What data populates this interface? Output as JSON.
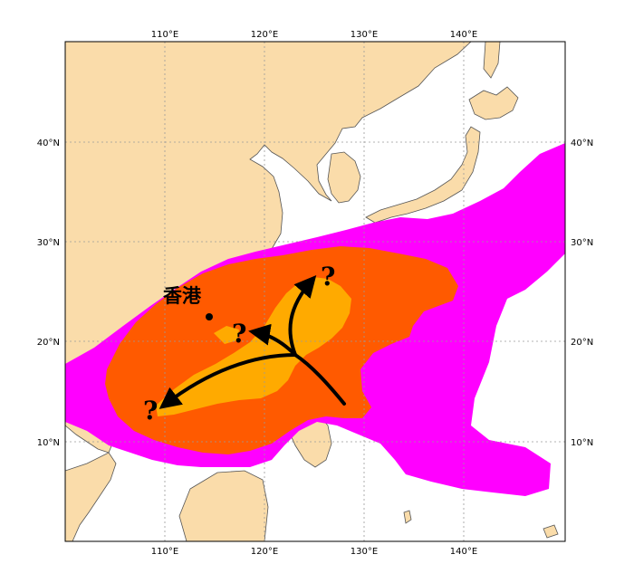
{
  "map": {
    "colors": {
      "land": "#fadcaa",
      "sea": "#ffffff",
      "coast": "#555555",
      "grid": "#9a9a9a",
      "prob_low": "#ff00ff",
      "prob_mid": "#ff5a00",
      "prob_high": "#ffaa00",
      "arrow": "#000000"
    },
    "lon_labels": [
      "110°E",
      "120°E",
      "130°E",
      "140°E"
    ],
    "lat_labels": [
      "40°N",
      "30°N",
      "20°N",
      "10°N"
    ],
    "place_label": "香港",
    "question_marks": [
      "?",
      "?",
      "?"
    ]
  }
}
